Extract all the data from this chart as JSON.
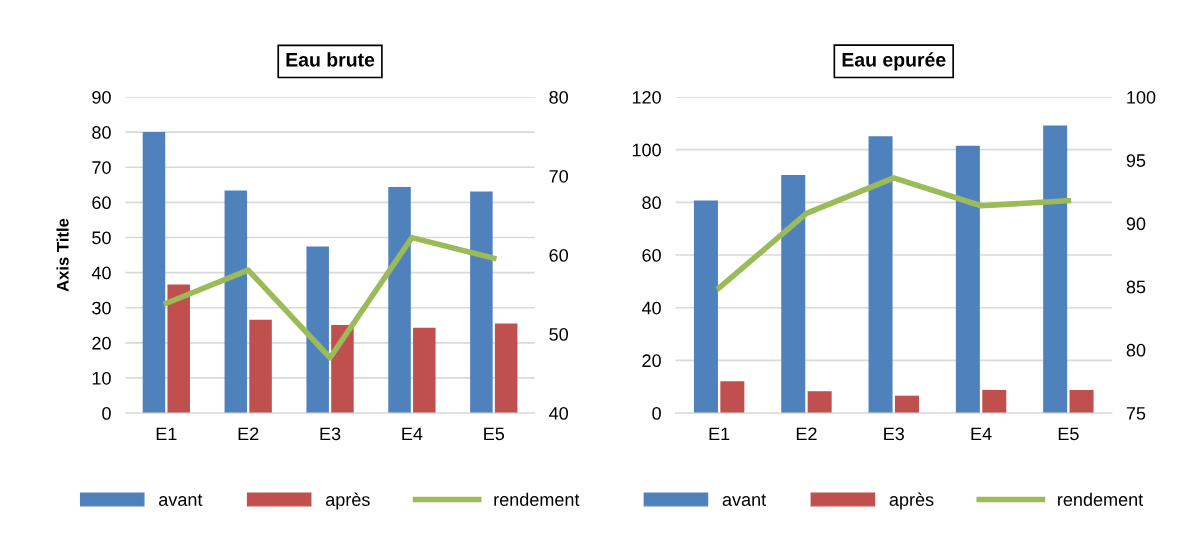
{
  "chart_data": [
    {
      "type": "bar",
      "title": "Eau brute",
      "ylabel": "Axis Title",
      "categories": [
        "E1",
        "E2",
        "E3",
        "E4",
        "E5"
      ],
      "series": [
        {
          "name": "avant",
          "color": "#4f81bd",
          "values": [
            80,
            63.4,
            47.4,
            64.4,
            63.1
          ]
        },
        {
          "name": "après",
          "color": "#c0504d",
          "values": [
            36.6,
            26.6,
            25.1,
            24.3,
            25.5
          ]
        },
        {
          "name": "rendement",
          "type": "line",
          "axis": "y2",
          "color": "#9bbb59",
          "values": [
            53.9,
            58.1,
            47.0,
            62.2,
            59.6
          ]
        }
      ],
      "ylim": [
        0,
        90
      ],
      "yticks": [
        0,
        10,
        20,
        30,
        40,
        50,
        60,
        70,
        80,
        90
      ],
      "y2lim": [
        40,
        80
      ],
      "y2ticks": [
        40,
        50,
        60,
        70,
        80
      ],
      "grid": "y",
      "legend": "bottom",
      "marker": "none"
    },
    {
      "type": "bar",
      "title": "Eau epurée",
      "categories": [
        "E1",
        "E2",
        "E3",
        "E4",
        "E5"
      ],
      "series": [
        {
          "name": "avant",
          "color": "#4f81bd",
          "values": [
            80.7,
            90.4,
            105.1,
            101.5,
            109.2
          ]
        },
        {
          "name": "après",
          "color": "#c0504d",
          "values": [
            12.1,
            8.3,
            6.6,
            8.8,
            8.8
          ]
        },
        {
          "name": "rendement",
          "type": "line",
          "axis": "y2",
          "color": "#9bbb59",
          "values": [
            84.9,
            90.8,
            93.6,
            91.4,
            91.8
          ]
        }
      ],
      "ylim": [
        0,
        120
      ],
      "yticks": [
        0,
        20,
        40,
        60,
        80,
        100,
        120
      ],
      "y2lim": [
        75,
        100
      ],
      "y2ticks": [
        75,
        80,
        85,
        90,
        95,
        100
      ],
      "grid": "y",
      "legend": "bottom",
      "marker": "none"
    }
  ]
}
